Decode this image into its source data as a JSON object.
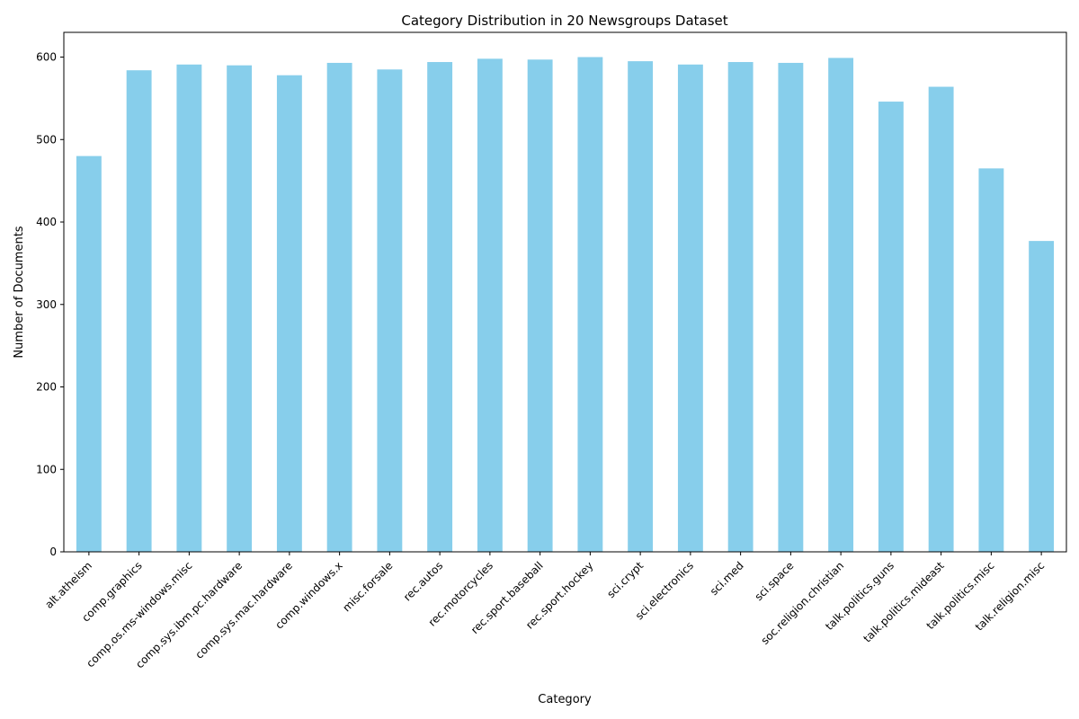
{
  "chart_data": {
    "type": "bar",
    "title": "Category Distribution in 20 Newsgroups Dataset",
    "xlabel": "Category",
    "ylabel": "Number of Documents",
    "ylim": [
      0,
      630
    ],
    "yticks": [
      0,
      100,
      200,
      300,
      400,
      500,
      600
    ],
    "grid": false,
    "legend": "none",
    "bar_color": "#87CEEB",
    "categories": [
      "alt.atheism",
      "comp.graphics",
      "comp.os.ms-windows.misc",
      "comp.sys.ibm.pc.hardware",
      "comp.sys.mac.hardware",
      "comp.windows.x",
      "misc.forsale",
      "rec.autos",
      "rec.motorcycles",
      "rec.sport.baseball",
      "rec.sport.hockey",
      "sci.crypt",
      "sci.electronics",
      "sci.med",
      "sci.space",
      "soc.religion.christian",
      "talk.politics.guns",
      "talk.politics.mideast",
      "talk.politics.misc",
      "talk.religion.misc"
    ],
    "values": [
      480,
      584,
      591,
      590,
      578,
      593,
      585,
      594,
      598,
      597,
      600,
      595,
      591,
      594,
      593,
      599,
      546,
      564,
      465,
      377
    ]
  }
}
